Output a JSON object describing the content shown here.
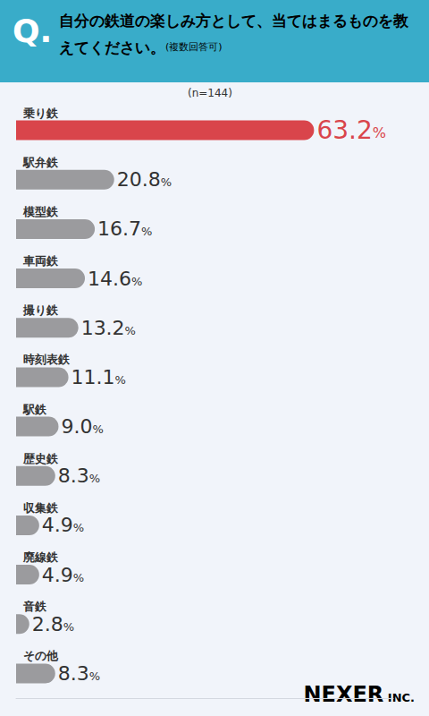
{
  "chart_data": {
    "type": "bar",
    "title": "自分の鉄道の楽しみ方として、当てはまるものを教えてください。",
    "subtitle": "(複数回答可)",
    "annotations": [
      "Q.",
      "(n=144)",
      "NEXER INC."
    ],
    "orientation": "horizontal",
    "categories": [
      "乗り鉄",
      "駅弁鉄",
      "模型鉄",
      "車両鉄",
      "撮り鉄",
      "時刻表鉄",
      "駅鉄",
      "歴史鉄",
      "収集鉄",
      "廃線鉄",
      "音鉄",
      "その他"
    ],
    "values": [
      63.2,
      20.8,
      16.7,
      14.6,
      13.2,
      11.1,
      9.0,
      8.3,
      4.9,
      4.9,
      2.8,
      8.3
    ],
    "value_labels": [
      "63.2%",
      "20.8%",
      "16.7%",
      "14.6%",
      "13.2%",
      "11.1%",
      "9.0%",
      "8.3%",
      "4.9%",
      "4.9%",
      "2.8%",
      "8.3%"
    ],
    "colors": [
      "#d9454b",
      "#9b9b9e",
      "#9b9b9e",
      "#9b9b9e",
      "#9b9b9e",
      "#9b9b9e",
      "#9b9b9e",
      "#9b9b9e",
      "#9b9b9e",
      "#9b9b9e",
      "#9b9b9e",
      "#9b9b9e"
    ],
    "xlim": [
      0,
      80
    ],
    "data_labels": true,
    "tick_labels": false,
    "grid": false
  }
}
